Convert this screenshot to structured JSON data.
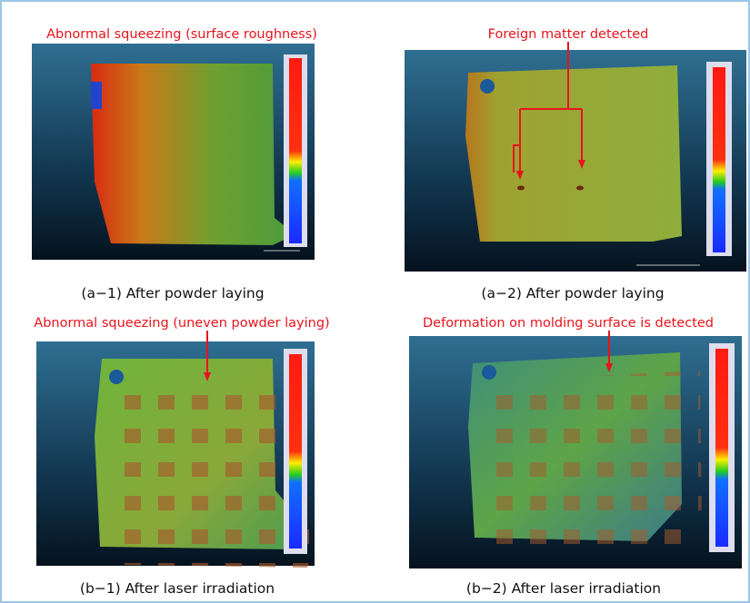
{
  "panels": [
    {
      "annotation": "Abnormal squeezing (surface roughness)",
      "caption": "(a−1) After powder laying"
    },
    {
      "annotation": "Foreign matter detected",
      "caption": "(a−2) After powder laying"
    },
    {
      "annotation": "Abnormal squeezing (uneven powder laying)",
      "caption": "(b−1) After laser irradiation"
    },
    {
      "annotation": "Deformation on molding surface is detected",
      "caption": "(b−2) After laser irradiation"
    }
  ]
}
